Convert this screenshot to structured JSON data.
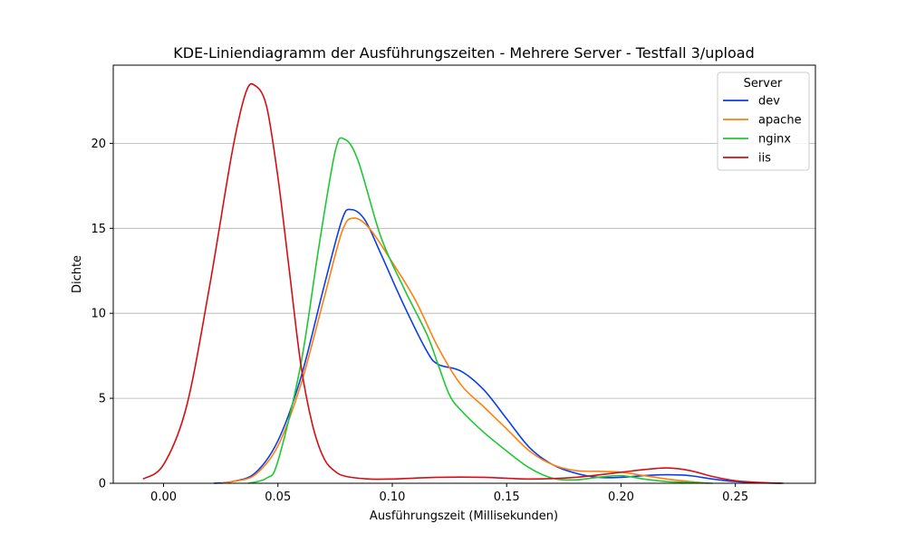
{
  "chart_data": {
    "type": "line",
    "title": "KDE-Liniendiagramm der Ausführungszeiten - Mehrere Server - Testfall 3/upload",
    "xlabel": "Ausführungszeit (Millisekunden)",
    "ylabel": "Dichte",
    "xlim": [
      -0.022,
      0.285
    ],
    "ylim": [
      0,
      24.6
    ],
    "xticks": [
      0.0,
      0.05,
      0.1,
      0.15,
      0.2,
      0.25
    ],
    "xtick_labels": [
      "0.00",
      "0.05",
      "0.10",
      "0.15",
      "0.20",
      "0.25"
    ],
    "yticks": [
      0,
      5,
      10,
      15,
      20
    ],
    "ytick_labels": [
      "0",
      "5",
      "10",
      "15",
      "20"
    ],
    "grid": "y",
    "legend": {
      "title": "Server",
      "placement": "top-right"
    },
    "series": [
      {
        "name": "dev",
        "color": "#0a3ee8",
        "points": [
          [
            0.022,
            0.0
          ],
          [
            0.03,
            0.1
          ],
          [
            0.04,
            0.6
          ],
          [
            0.05,
            2.5
          ],
          [
            0.06,
            6.2
          ],
          [
            0.07,
            11.5
          ],
          [
            0.078,
            15.5
          ],
          [
            0.082,
            16.1
          ],
          [
            0.088,
            15.5
          ],
          [
            0.095,
            13.5
          ],
          [
            0.105,
            10.5
          ],
          [
            0.115,
            7.8
          ],
          [
            0.12,
            7.0
          ],
          [
            0.13,
            6.6
          ],
          [
            0.14,
            5.5
          ],
          [
            0.15,
            3.8
          ],
          [
            0.16,
            2.1
          ],
          [
            0.17,
            1.1
          ],
          [
            0.18,
            0.6
          ],
          [
            0.19,
            0.35
          ],
          [
            0.2,
            0.35
          ],
          [
            0.21,
            0.45
          ],
          [
            0.22,
            0.5
          ],
          [
            0.23,
            0.45
          ],
          [
            0.24,
            0.25
          ],
          [
            0.25,
            0.1
          ],
          [
            0.26,
            0.03
          ],
          [
            0.27,
            0.0
          ]
        ]
      },
      {
        "name": "apache",
        "color": "#ff7f0e",
        "points": [
          [
            0.025,
            0.0
          ],
          [
            0.03,
            0.1
          ],
          [
            0.04,
            0.5
          ],
          [
            0.05,
            2.2
          ],
          [
            0.06,
            5.8
          ],
          [
            0.07,
            10.8
          ],
          [
            0.078,
            14.8
          ],
          [
            0.083,
            15.6
          ],
          [
            0.09,
            15.0
          ],
          [
            0.1,
            13.0
          ],
          [
            0.11,
            10.8
          ],
          [
            0.12,
            8.0
          ],
          [
            0.13,
            5.8
          ],
          [
            0.14,
            4.5
          ],
          [
            0.15,
            3.2
          ],
          [
            0.16,
            1.9
          ],
          [
            0.17,
            1.1
          ],
          [
            0.18,
            0.75
          ],
          [
            0.19,
            0.7
          ],
          [
            0.2,
            0.65
          ],
          [
            0.21,
            0.45
          ],
          [
            0.22,
            0.25
          ],
          [
            0.23,
            0.1
          ],
          [
            0.238,
            0.0
          ]
        ]
      },
      {
        "name": "nginx",
        "color": "#1ec832",
        "points": [
          [
            0.037,
            0.0
          ],
          [
            0.045,
            0.3
          ],
          [
            0.05,
            1.3
          ],
          [
            0.06,
            7.0
          ],
          [
            0.068,
            14.0
          ],
          [
            0.075,
            19.5
          ],
          [
            0.079,
            20.25
          ],
          [
            0.085,
            19.0
          ],
          [
            0.095,
            14.5
          ],
          [
            0.105,
            11.5
          ],
          [
            0.115,
            8.8
          ],
          [
            0.12,
            7.0
          ],
          [
            0.125,
            5.2
          ],
          [
            0.13,
            4.3
          ],
          [
            0.14,
            3.0
          ],
          [
            0.15,
            1.9
          ],
          [
            0.16,
            0.9
          ],
          [
            0.17,
            0.3
          ],
          [
            0.18,
            0.2
          ],
          [
            0.19,
            0.35
          ],
          [
            0.2,
            0.45
          ],
          [
            0.21,
            0.25
          ],
          [
            0.22,
            0.1
          ],
          [
            0.23,
            0.05
          ],
          [
            0.24,
            0.0
          ]
        ]
      },
      {
        "name": "iis",
        "color": "#d40f14",
        "points": [
          [
            -0.009,
            0.25
          ],
          [
            0.0,
            1.1
          ],
          [
            0.01,
            4.5
          ],
          [
            0.02,
            11.5
          ],
          [
            0.03,
            19.5
          ],
          [
            0.036,
            23.0
          ],
          [
            0.04,
            23.4
          ],
          [
            0.045,
            22.2
          ],
          [
            0.05,
            18.0
          ],
          [
            0.055,
            12.5
          ],
          [
            0.06,
            7.0
          ],
          [
            0.065,
            3.5
          ],
          [
            0.07,
            1.5
          ],
          [
            0.075,
            0.7
          ],
          [
            0.08,
            0.4
          ],
          [
            0.09,
            0.25
          ],
          [
            0.1,
            0.25
          ],
          [
            0.12,
            0.35
          ],
          [
            0.14,
            0.35
          ],
          [
            0.16,
            0.25
          ],
          [
            0.18,
            0.35
          ],
          [
            0.2,
            0.65
          ],
          [
            0.21,
            0.8
          ],
          [
            0.22,
            0.9
          ],
          [
            0.23,
            0.75
          ],
          [
            0.24,
            0.4
          ],
          [
            0.25,
            0.15
          ],
          [
            0.26,
            0.05
          ],
          [
            0.271,
            0.0
          ]
        ]
      }
    ]
  }
}
